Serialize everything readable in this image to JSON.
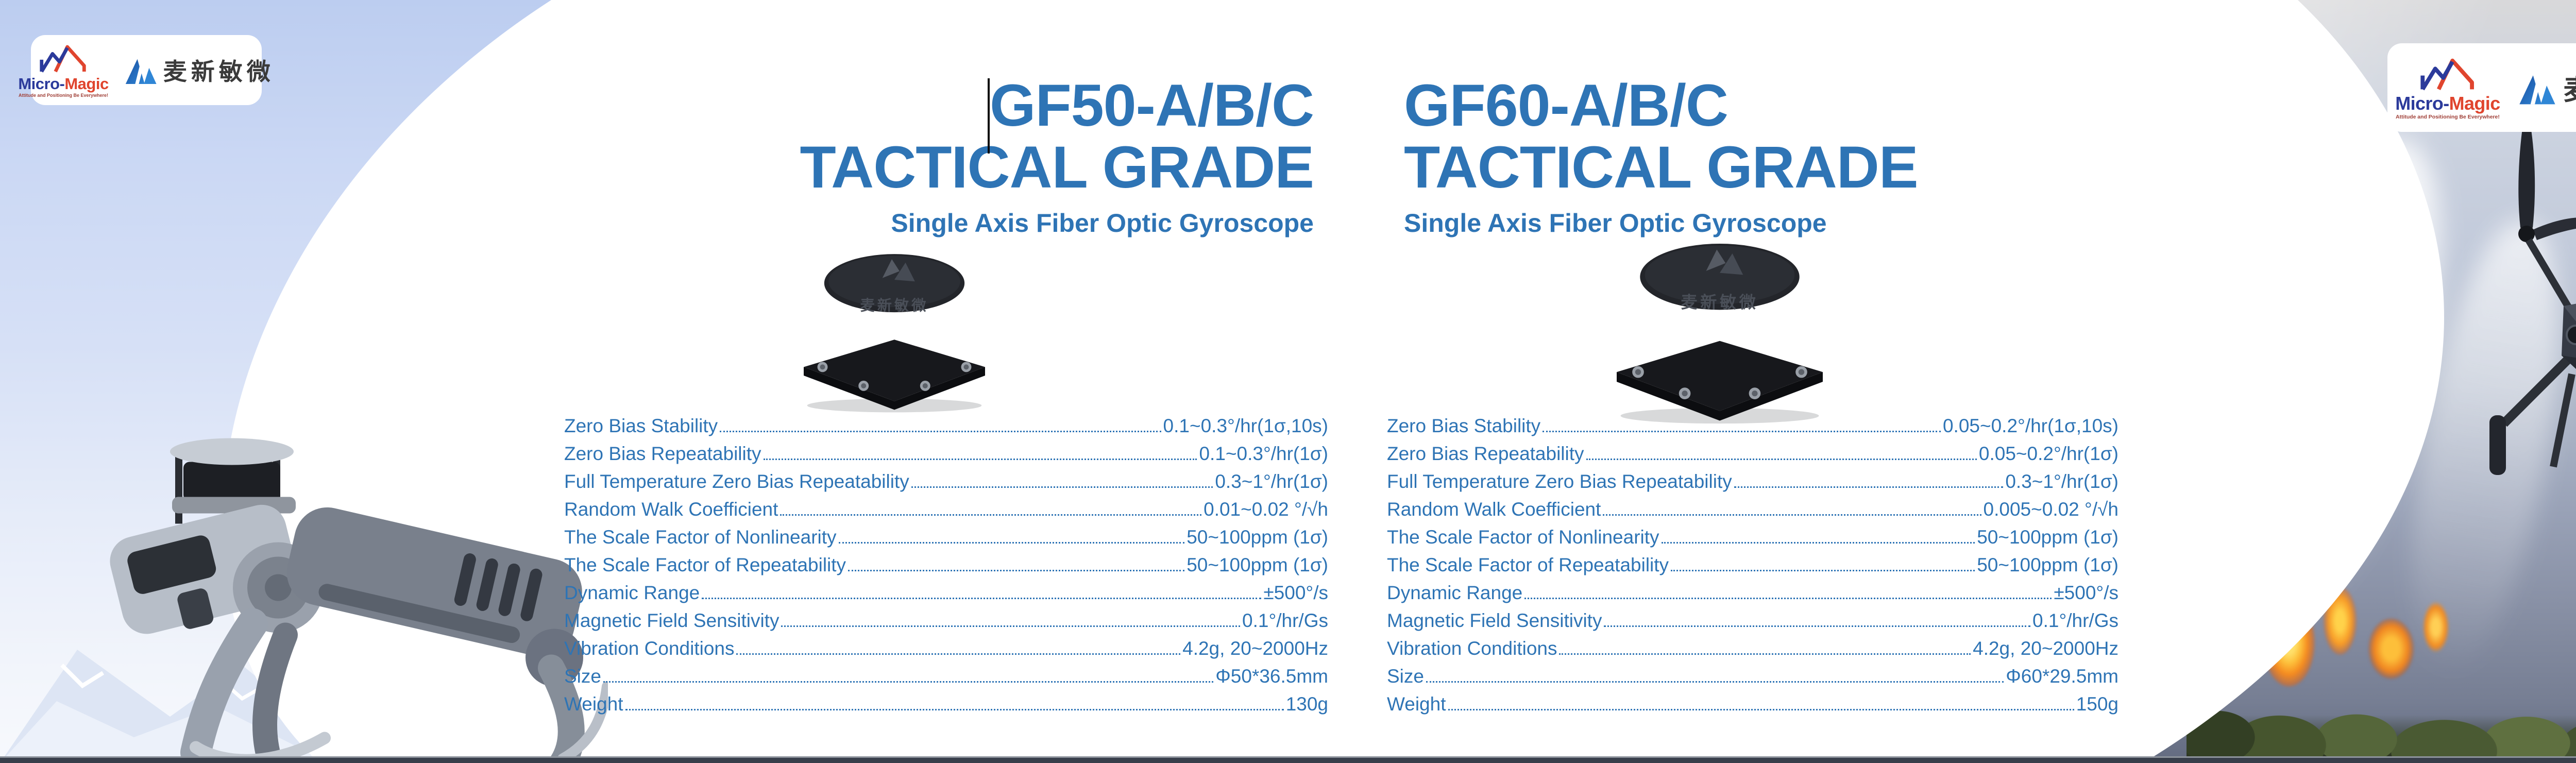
{
  "brand": {
    "micro_magic_part1": "Micro-",
    "micro_magic_part2": "Magic",
    "micro_magic_tagline": "Attitude and Positioning Be Everywhere!",
    "cn_name": "麦新敏微"
  },
  "products": [
    {
      "model": "GF50-A/B/C",
      "grade": "TACTICAL GRADE",
      "subtitle": "Single Axis Fiber Optic Gyroscope",
      "specs": [
        {
          "label": "Zero Bias Stability",
          "value": "0.1~0.3°/hr(1σ,10s)"
        },
        {
          "label": "Zero Bias Repeatability",
          "value": "0.1~0.3°/hr(1σ)"
        },
        {
          "label": "Full Temperature Zero Bias Repeatability",
          "value": "0.3~1°/hr(1σ)"
        },
        {
          "label": "Random Walk Coefficient",
          "value": "0.01~0.02 °/√h"
        },
        {
          "label": "The Scale Factor of Nonlinearity",
          "value": "50~100ppm (1σ)"
        },
        {
          "label": "The Scale Factor of Repeatability",
          "value": "50~100ppm (1σ)"
        },
        {
          "label": "Dynamic Range",
          "value": "±500°/s"
        },
        {
          "label": "Magnetic Field Sensitivity",
          "value": "0.1°/hr/Gs"
        },
        {
          "label": "Vibration Conditions",
          "value": "4.2g, 20~2000Hz"
        },
        {
          "label": "Size",
          "value": "Φ50*36.5mm"
        },
        {
          "label": "Weight",
          "value": "130g"
        }
      ]
    },
    {
      "model": "GF60-A/B/C",
      "grade": "TACTICAL GRADE",
      "subtitle": "Single Axis Fiber Optic Gyroscope",
      "specs": [
        {
          "label": "Zero Bias Stability",
          "value": "0.05~0.2°/hr(1σ,10s)"
        },
        {
          "label": "Zero Bias Repeatability",
          "value": "0.05~0.2°/hr(1σ)"
        },
        {
          "label": "Full Temperature Zero Bias Repeatability",
          "value": "0.3~1°/hr(1σ)"
        },
        {
          "label": "Random Walk Coefficient",
          "value": "0.005~0.02 °/√h"
        },
        {
          "label": "The Scale Factor of Nonlinearity",
          "value": "50~100ppm (1σ)"
        },
        {
          "label": "The Scale Factor of Repeatability",
          "value": "50~100ppm (1σ)"
        },
        {
          "label": "Dynamic Range",
          "value": "±500°/s"
        },
        {
          "label": "Magnetic Field Sensitivity",
          "value": "0.1°/hr/Gs"
        },
        {
          "label": "Vibration Conditions",
          "value": "4.2g, 20~2000Hz"
        },
        {
          "label": "Size",
          "value": "Φ60*29.5mm"
        },
        {
          "label": "Weight",
          "value": "150g"
        }
      ]
    }
  ],
  "colors": {
    "accent_blue": "#2E74B5",
    "brand_blue": "#2B3A9B",
    "brand_red": "#E0452E",
    "sky_blue": "#CBD8F4",
    "fire_orange": "#F58A1F",
    "bottom_bar": "#383E4A"
  }
}
